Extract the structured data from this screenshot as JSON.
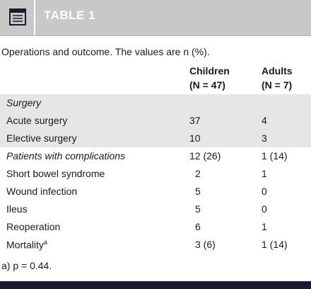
{
  "table": {
    "title": "TABLE 1",
    "caption": "Operations and outcome. The values are n (%).",
    "columns": [
      {
        "line1": "Children",
        "line2": "(N = 47)"
      },
      {
        "line1": "Adults",
        "line2": "(N = 7)"
      }
    ],
    "rows": [
      {
        "label": "Surgery",
        "c1": "",
        "c2": ""
      },
      {
        "label": "Acute surgery",
        "c1": "37",
        "c2": "4"
      },
      {
        "label": "Elective surgery",
        "c1": "10",
        "c2": "3"
      },
      {
        "label": "Patients with complications",
        "c1": "12 (26)",
        "c2": "1 (14)"
      },
      {
        "label": "Short bowel syndrome",
        "c1": "2",
        "c2": "1"
      },
      {
        "label": "Wound infection",
        "c1": "5",
        "c2": "0"
      },
      {
        "label": "Ileus",
        "c1": "5",
        "c2": "0"
      },
      {
        "label": "Reoperation",
        "c1": "6",
        "c2": "1"
      },
      {
        "label": "Mortality",
        "sup": "a",
        "c1": "3 (6)",
        "c2": "1 (14)"
      }
    ],
    "footnote": "a) p = 0.44."
  },
  "icons": {
    "header_icon": "document-list-icon"
  },
  "colors": {
    "header_bg": "#c8c8c8",
    "shaded_row": "#e6e6e6",
    "footer_bar": "#1a1a2e"
  }
}
